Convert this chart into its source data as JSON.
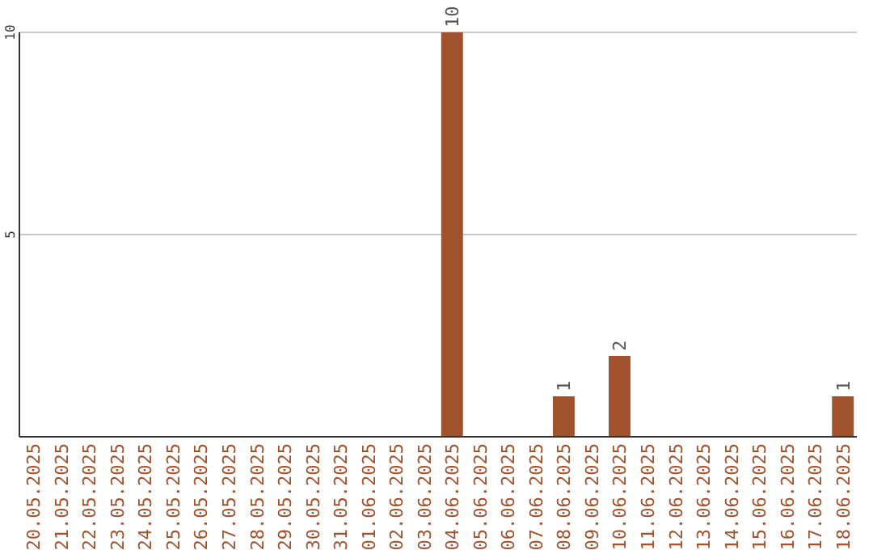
{
  "chart_data": {
    "type": "bar",
    "categories": [
      "20.05.2025",
      "21.05.2025",
      "22.05.2025",
      "23.05.2025",
      "24.05.2025",
      "25.05.2025",
      "26.05.2025",
      "27.05.2025",
      "28.05.2025",
      "29.05.2025",
      "30.05.2025",
      "31.05.2025",
      "01.06.2025",
      "02.06.2025",
      "03.06.2025",
      "04.06.2025",
      "05.06.2025",
      "06.06.2025",
      "07.06.2025",
      "08.06.2025",
      "09.06.2025",
      "10.06.2025",
      "11.06.2025",
      "12.06.2025",
      "13.06.2025",
      "14.06.2025",
      "15.06.2025",
      "16.06.2025",
      "17.06.2025",
      "18.06.2025"
    ],
    "values": [
      0,
      0,
      0,
      0,
      0,
      0,
      0,
      0,
      0,
      0,
      0,
      0,
      0,
      0,
      0,
      10,
      0,
      0,
      0,
      1,
      0,
      2,
      0,
      0,
      0,
      0,
      0,
      0,
      0,
      1
    ],
    "value_labels": [
      null,
      null,
      null,
      null,
      null,
      null,
      null,
      null,
      null,
      null,
      null,
      null,
      null,
      null,
      null,
      "10",
      null,
      null,
      null,
      "1",
      null,
      "2",
      null,
      null,
      null,
      null,
      null,
      null,
      null,
      "1"
    ],
    "color": "#a0522d",
    "ylim": [
      0,
      10
    ],
    "yticks": [
      {
        "value": 0,
        "label": null
      },
      5,
      10
    ],
    "grid": "y"
  }
}
